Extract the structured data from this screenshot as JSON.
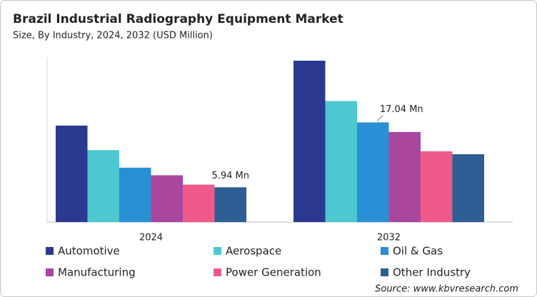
{
  "chart_data": {
    "type": "bar",
    "title": "Brazil Industrial Radiography Equipment Market",
    "subtitle": "Size, By Industry, 2024, 2032 (USD Million)",
    "source": "Source: www.kbvresearch.com",
    "categories": [
      "2024",
      "2032"
    ],
    "series": [
      {
        "name": "Automotive",
        "color": "#2b3990",
        "values": [
          16.5,
          27.6
        ]
      },
      {
        "name": "Aerospace",
        "color": "#4ec8d0",
        "values": [
          12.3,
          20.7
        ]
      },
      {
        "name": "Oil & Gas",
        "color": "#2a8fd4",
        "values": [
          9.3,
          17.04
        ],
        "value_labels": [
          null,
          "17.04 Mn"
        ]
      },
      {
        "name": "Manufacturing",
        "color": "#a9479f",
        "values": [
          8.0,
          15.4
        ]
      },
      {
        "name": "Power Generation",
        "color": "#ef5a8a",
        "values": [
          6.4,
          12.1
        ]
      },
      {
        "name": "Other Industry",
        "color": "#2d5e94",
        "values": [
          5.94,
          11.6
        ],
        "value_labels": [
          "5.94 Mn",
          null
        ]
      }
    ]
  }
}
